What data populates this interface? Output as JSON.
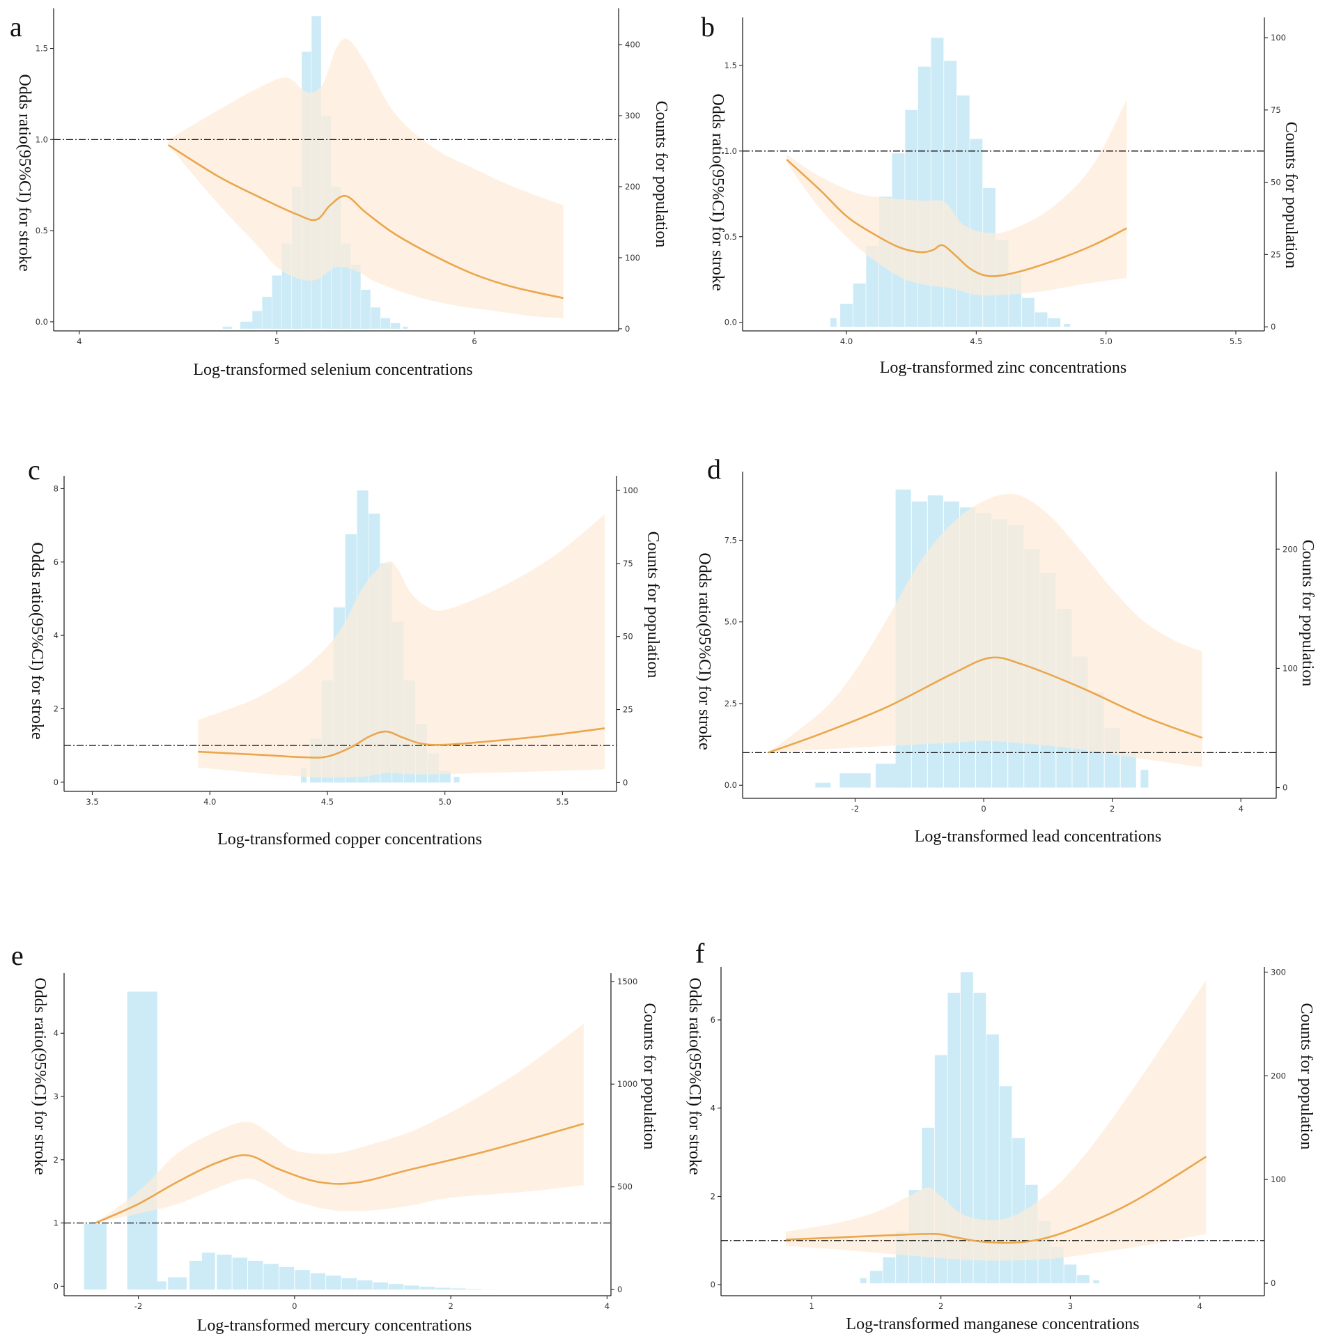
{
  "colors": {
    "band": "#fdebd8",
    "curve": "#eba64c",
    "histogram": "#cdebf7",
    "reference_line": "#111111",
    "axis": "#222222"
  },
  "chart_data": [
    {
      "panel": "a",
      "type": "line",
      "title": "",
      "xlabel": "Log-transformed selenium concentrations",
      "ylabel": "Odds ratio(95%CI) for stroke",
      "y2label": "Counts for population",
      "xlim": [
        3.87,
        6.73
      ],
      "ylim": [
        -0.05,
        1.72
      ],
      "y2lim": [
        -3,
        451
      ],
      "xticks": [
        4,
        5,
        6
      ],
      "xtick_labels": [
        "4",
        "5",
        "6"
      ],
      "yticks": [
        0,
        0.5,
        1,
        1.5
      ],
      "ytick_labels": [
        "0.0",
        "0.5",
        "1.0",
        "1.5"
      ],
      "y2ticks": [
        0,
        100,
        200,
        300,
        400
      ],
      "y2tick_labels": [
        "0",
        "100",
        "200",
        "300",
        "400"
      ],
      "reference_y": 1.0,
      "curve": {
        "x": [
          4.45,
          4.7,
          4.9,
          5.1,
          5.2,
          5.27,
          5.35,
          5.45,
          5.6,
          5.8,
          6.0,
          6.2,
          6.45
        ],
        "y": [
          0.97,
          0.8,
          0.69,
          0.59,
          0.56,
          0.64,
          0.69,
          0.6,
          0.48,
          0.36,
          0.26,
          0.19,
          0.13
        ]
      },
      "ci_upper": {
        "x": [
          4.45,
          4.7,
          4.9,
          5.05,
          5.15,
          5.23,
          5.3,
          5.36,
          5.45,
          5.6,
          5.8,
          6.0,
          6.2,
          6.45
        ],
        "y": [
          1.0,
          1.16,
          1.28,
          1.34,
          1.26,
          1.3,
          1.5,
          1.55,
          1.42,
          1.14,
          0.95,
          0.84,
          0.74,
          0.64
        ]
      },
      "ci_lower": {
        "x": [
          4.45,
          4.7,
          4.9,
          5.0,
          5.1,
          5.2,
          5.3,
          5.4,
          5.5,
          5.7,
          5.9,
          6.1,
          6.3,
          6.45
        ],
        "y": [
          0.97,
          0.65,
          0.42,
          0.3,
          0.24,
          0.23,
          0.3,
          0.28,
          0.22,
          0.14,
          0.09,
          0.06,
          0.03,
          0.02
        ]
      },
      "histogram": {
        "x": [
          4.75,
          4.85,
          4.9,
          4.95,
          5.0,
          5.05,
          5.1,
          5.15,
          5.2,
          5.25,
          5.3,
          5.35,
          5.4,
          5.45,
          5.5,
          5.55,
          5.6,
          5.65
        ],
        "counts": [
          3,
          10,
          25,
          45,
          75,
          120,
          200,
          390,
          440,
          300,
          200,
          120,
          90,
          55,
          30,
          15,
          8,
          3
        ]
      }
    },
    {
      "panel": "b",
      "type": "line",
      "title": "",
      "xlabel": "Log-transformed zinc concentrations",
      "ylabel": "Odds ratio(95%CI) for stroke",
      "y2label": "Counts for population",
      "xlim": [
        3.6,
        5.61
      ],
      "ylim": [
        -0.05,
        1.78
      ],
      "y2lim": [
        -1.4,
        107
      ],
      "xticks": [
        4.0,
        4.5,
        5.0,
        5.5
      ],
      "xtick_labels": [
        "4.0",
        "4.5",
        "5.0",
        "5.5"
      ],
      "yticks": [
        0,
        0.5,
        1,
        1.5
      ],
      "ytick_labels": [
        "0.0",
        "0.5",
        "1.0",
        "1.5"
      ],
      "y2ticks": [
        0,
        25,
        50,
        75,
        100
      ],
      "y2tick_labels": [
        "0",
        "25",
        "50",
        "75",
        "100"
      ],
      "reference_y": 1.0,
      "curve": {
        "x": [
          3.77,
          3.9,
          4.0,
          4.1,
          4.2,
          4.28,
          4.33,
          4.37,
          4.42,
          4.48,
          4.55,
          4.65,
          4.8,
          4.95,
          5.08
        ],
        "y": [
          0.95,
          0.77,
          0.62,
          0.52,
          0.44,
          0.41,
          0.42,
          0.45,
          0.39,
          0.31,
          0.27,
          0.29,
          0.36,
          0.45,
          0.55
        ]
      },
      "ci_upper": {
        "x": [
          3.77,
          3.9,
          4.05,
          4.2,
          4.3,
          4.38,
          4.45,
          4.55,
          4.65,
          4.8,
          4.95,
          5.08
        ],
        "y": [
          0.98,
          0.85,
          0.75,
          0.72,
          0.71,
          0.7,
          0.57,
          0.52,
          0.55,
          0.68,
          0.92,
          1.3
        ]
      },
      "ci_lower": {
        "x": [
          3.77,
          3.9,
          4.05,
          4.2,
          4.3,
          4.4,
          4.5,
          4.6,
          4.75,
          4.9,
          5.08
        ],
        "y": [
          0.93,
          0.66,
          0.43,
          0.27,
          0.22,
          0.2,
          0.16,
          0.16,
          0.18,
          0.22,
          0.26
        ]
      },
      "histogram": {
        "x": [
          3.95,
          4.0,
          4.05,
          4.1,
          4.15,
          4.2,
          4.25,
          4.3,
          4.35,
          4.4,
          4.45,
          4.5,
          4.55,
          4.6,
          4.65,
          4.7,
          4.75,
          4.8,
          4.85
        ],
        "counts": [
          3,
          8,
          15,
          28,
          45,
          60,
          75,
          90,
          100,
          92,
          80,
          65,
          48,
          30,
          18,
          10,
          5,
          3,
          1
        ]
      }
    },
    {
      "panel": "c",
      "type": "line",
      "title": "",
      "xlabel": "Log-transformed copper concentrations",
      "ylabel": "Odds ratio(95%CI) for stroke",
      "y2label": "Counts for population",
      "xlim": [
        3.38,
        5.73
      ],
      "ylim": [
        -0.25,
        8.35
      ],
      "y2lim": [
        -3,
        105
      ],
      "xticks": [
        3.5,
        4.0,
        4.5,
        5.0,
        5.5
      ],
      "xtick_labels": [
        "3.5",
        "4.0",
        "4.5",
        "5.0",
        "5.5"
      ],
      "yticks": [
        0,
        2,
        4,
        6,
        8
      ],
      "ytick_labels": [
        "0",
        "2",
        "4",
        "6",
        "8"
      ],
      "y2ticks": [
        0,
        25,
        50,
        75,
        100
      ],
      "y2tick_labels": [
        "0",
        "25",
        "50",
        "75",
        "100"
      ],
      "reference_y": 1.0,
      "curve": {
        "x": [
          3.95,
          4.2,
          4.4,
          4.5,
          4.6,
          4.68,
          4.75,
          4.82,
          4.9,
          5.0,
          5.2,
          5.45,
          5.68
        ],
        "y": [
          0.83,
          0.75,
          0.68,
          0.7,
          0.95,
          1.25,
          1.38,
          1.22,
          1.05,
          1.02,
          1.12,
          1.28,
          1.47
        ]
      },
      "ci_upper": {
        "x": [
          3.95,
          4.2,
          4.4,
          4.55,
          4.65,
          4.75,
          4.8,
          4.85,
          4.92,
          5.0,
          5.2,
          5.45,
          5.68
        ],
        "y": [
          1.7,
          2.3,
          3.1,
          4.1,
          5.3,
          6.0,
          5.8,
          5.2,
          4.8,
          4.7,
          5.2,
          6.1,
          7.3
        ]
      },
      "ci_lower": {
        "x": [
          3.95,
          4.2,
          4.4,
          4.5,
          4.65,
          4.75,
          4.85,
          5.0,
          5.2,
          5.45,
          5.68
        ],
        "y": [
          0.4,
          0.25,
          0.15,
          0.12,
          0.15,
          0.25,
          0.22,
          0.22,
          0.26,
          0.3,
          0.35
        ]
      },
      "histogram": {
        "x": [
          4.4,
          4.45,
          4.5,
          4.55,
          4.6,
          4.65,
          4.7,
          4.75,
          4.8,
          4.85,
          4.9,
          4.95,
          5.0,
          5.05
        ],
        "counts": [
          5,
          15,
          35,
          60,
          85,
          100,
          92,
          75,
          55,
          35,
          20,
          10,
          4,
          2
        ]
      }
    },
    {
      "panel": "d",
      "type": "line",
      "title": "",
      "xlabel": "Log-transformed lead concentrations",
      "ylabel": "Odds ratio(95%CI) for stroke",
      "y2label": "Counts for population",
      "xlim": [
        -3.75,
        4.55
      ],
      "ylim": [
        -0.4,
        9.6
      ],
      "y2lim": [
        -9,
        265
      ],
      "xticks": [
        -2,
        0,
        2,
        4
      ],
      "xtick_labels": [
        "-2",
        "0",
        "2",
        "4"
      ],
      "yticks": [
        0,
        2.5,
        5.0,
        7.5
      ],
      "ytick_labels": [
        "0.0",
        "2.5",
        "5.0",
        "7.5"
      ],
      "y2ticks": [
        0,
        100,
        200
      ],
      "y2tick_labels": [
        "0",
        "100",
        "200"
      ],
      "reference_y": 1.0,
      "curve": {
        "x": [
          -3.35,
          -2.5,
          -1.5,
          -0.5,
          0.1,
          0.6,
          1.5,
          2.5,
          3.4
        ],
        "y": [
          1.0,
          1.6,
          2.4,
          3.4,
          3.9,
          3.7,
          3.0,
          2.1,
          1.45
        ]
      },
      "ci_upper": {
        "x": [
          -3.35,
          -2.5,
          -2.0,
          -1.5,
          -1.0,
          -0.5,
          0.0,
          0.5,
          1.0,
          1.5,
          2.0,
          2.5,
          3.0,
          3.4
        ],
        "y": [
          1.0,
          2.3,
          3.5,
          5.1,
          6.8,
          8.0,
          8.7,
          8.9,
          8.3,
          7.2,
          6.0,
          5.0,
          4.4,
          4.1
        ]
      },
      "ci_lower": {
        "x": [
          -3.35,
          -2.5,
          -1.5,
          -0.5,
          0.0,
          0.5,
          1.5,
          2.5,
          3.4
        ],
        "y": [
          1.0,
          1.1,
          1.2,
          1.3,
          1.35,
          1.3,
          1.1,
          0.8,
          0.55
        ]
      },
      "histogram": {
        "x": [
          -2.5,
          -2.0,
          -1.5,
          -1.25,
          -1.0,
          -0.75,
          -0.5,
          -0.25,
          0.0,
          0.25,
          0.5,
          0.75,
          1.0,
          1.25,
          1.5,
          1.75,
          2.0,
          2.25,
          2.5
        ],
        "counts": [
          4,
          12,
          20,
          250,
          240,
          245,
          240,
          235,
          230,
          225,
          220,
          200,
          180,
          150,
          110,
          80,
          50,
          30,
          15
        ]
      }
    },
    {
      "panel": "e",
      "type": "line",
      "title": "",
      "xlabel": "Log-transformed mercury concentrations",
      "ylabel": "Odds ratio(95%CI) for stroke",
      "y2label": "Counts for population",
      "xlim": [
        -2.95,
        4.05
      ],
      "ylim": [
        -0.15,
        4.95
      ],
      "y2lim": [
        -30,
        1540
      ],
      "xticks": [
        -2,
        0,
        2,
        4
      ],
      "xtick_labels": [
        "-2",
        "0",
        "2",
        "4"
      ],
      "yticks": [
        0,
        1,
        2,
        3,
        4
      ],
      "ytick_labels": [
        "0",
        "1",
        "2",
        "3",
        "4"
      ],
      "y2ticks": [
        0,
        500,
        1000,
        1500
      ],
      "y2tick_labels": [
        "0",
        "500",
        "1000",
        "1500"
      ],
      "reference_y": 1.0,
      "curve": {
        "x": [
          -2.55,
          -2.0,
          -1.5,
          -1.0,
          -0.6,
          -0.2,
          0.3,
          0.8,
          1.5,
          2.5,
          3.7
        ],
        "y": [
          1.0,
          1.3,
          1.65,
          1.95,
          2.07,
          1.85,
          1.65,
          1.64,
          1.85,
          2.15,
          2.57
        ]
      },
      "ci_upper": {
        "x": [
          -2.55,
          -2.0,
          -1.5,
          -1.0,
          -0.6,
          -0.3,
          0.0,
          0.5,
          1.0,
          1.5,
          2.0,
          2.5,
          3.0,
          3.7
        ],
        "y": [
          1.0,
          1.5,
          2.1,
          2.45,
          2.6,
          2.4,
          2.15,
          2.1,
          2.25,
          2.45,
          2.75,
          3.1,
          3.5,
          4.15
        ]
      },
      "ci_lower": {
        "x": [
          -2.55,
          -2.0,
          -1.5,
          -1.0,
          -0.6,
          -0.3,
          0.0,
          0.5,
          1.0,
          1.5,
          2.0,
          3.0,
          3.7
        ],
        "y": [
          1.0,
          1.15,
          1.3,
          1.55,
          1.7,
          1.55,
          1.35,
          1.2,
          1.2,
          1.28,
          1.4,
          1.5,
          1.6
        ]
      },
      "histogram": {
        "x": [
          -2.55,
          -1.95,
          -1.75,
          -1.5,
          -1.25,
          -1.1,
          -0.9,
          -0.7,
          -0.5,
          -0.3,
          -0.1,
          0.1,
          0.3,
          0.5,
          0.7,
          0.9,
          1.1,
          1.3,
          1.5,
          1.7,
          1.9,
          2.1,
          2.3,
          2.5
        ],
        "counts": [
          320,
          1450,
          40,
          60,
          140,
          180,
          170,
          155,
          140,
          125,
          110,
          95,
          80,
          68,
          55,
          45,
          35,
          27,
          20,
          14,
          9,
          6,
          3,
          1
        ]
      }
    },
    {
      "panel": "f",
      "type": "line",
      "title": "",
      "xlabel": "Log-transformed manganese concentrations",
      "ylabel": "Odds ratio(95%CI) for stroke",
      "y2label": "Counts for population",
      "xlim": [
        0.3,
        4.5
      ],
      "ylim": [
        -0.25,
        7.2
      ],
      "y2lim": [
        -12,
        305
      ],
      "xticks": [
        1,
        2,
        3,
        4
      ],
      "xtick_labels": [
        "1",
        "2",
        "3",
        "4"
      ],
      "yticks": [
        0,
        2,
        4,
        6
      ],
      "ytick_labels": [
        "0",
        "2",
        "4",
        "6"
      ],
      "y2ticks": [
        0,
        100,
        200,
        300
      ],
      "y2tick_labels": [
        "0",
        "100",
        "200",
        "300"
      ],
      "reference_y": 1.0,
      "curve": {
        "x": [
          0.8,
          1.2,
          1.6,
          1.95,
          2.1,
          2.3,
          2.55,
          2.8,
          3.1,
          3.5,
          4.05
        ],
        "y": [
          1.02,
          1.07,
          1.12,
          1.15,
          1.08,
          0.98,
          0.95,
          1.05,
          1.35,
          1.9,
          2.9
        ]
      },
      "ci_upper": {
        "x": [
          0.8,
          1.2,
          1.5,
          1.75,
          1.9,
          2.0,
          2.2,
          2.5,
          2.8,
          3.1,
          3.5,
          4.05
        ],
        "y": [
          1.2,
          1.4,
          1.65,
          2.0,
          2.2,
          2.0,
          1.55,
          1.5,
          2.0,
          2.9,
          4.5,
          6.9
        ]
      },
      "ci_lower": {
        "x": [
          0.8,
          1.2,
          1.6,
          2.0,
          2.3,
          2.6,
          2.9,
          3.2,
          3.6,
          4.05
        ],
        "y": [
          0.88,
          0.8,
          0.7,
          0.6,
          0.55,
          0.55,
          0.6,
          0.72,
          0.9,
          1.15
        ]
      },
      "histogram": {
        "x": [
          1.4,
          1.5,
          1.6,
          1.7,
          1.8,
          1.9,
          2.0,
          2.1,
          2.2,
          2.3,
          2.4,
          2.5,
          2.6,
          2.7,
          2.8,
          2.9,
          3.0,
          3.1,
          3.2
        ],
        "counts": [
          5,
          12,
          25,
          50,
          90,
          150,
          220,
          280,
          300,
          280,
          240,
          190,
          140,
          95,
          60,
          35,
          18,
          8,
          3
        ]
      }
    }
  ]
}
